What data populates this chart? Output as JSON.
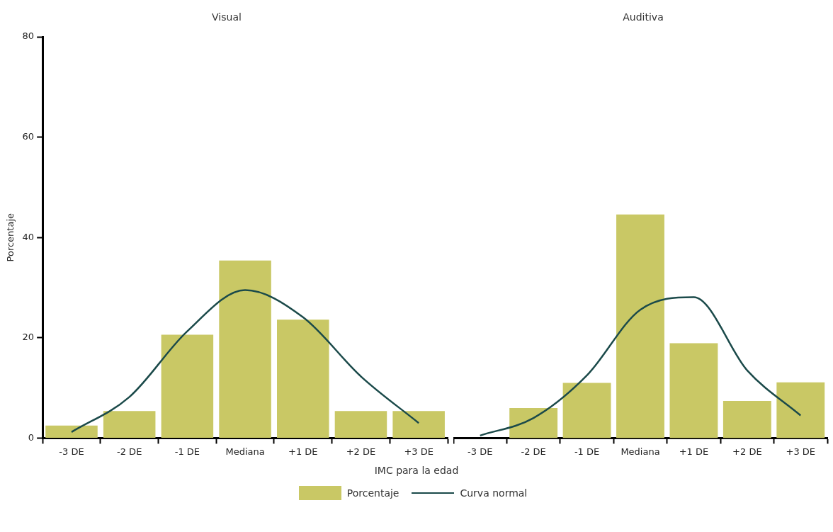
{
  "chart_data": [
    {
      "type": "bar",
      "title": "Visual",
      "xlabel": "IMC para la edad",
      "ylabel": "Porcentaje",
      "categories": [
        "-3 DE",
        "-2 DE",
        "-1 DE",
        "Mediana",
        "+1 DE",
        "+2 DE",
        "+3 DE"
      ],
      "ylim": [
        0,
        80
      ],
      "yticks": [
        0,
        20,
        40,
        60,
        80
      ],
      "legend": "bottom",
      "series": [
        {
          "name": "Porcentaje",
          "color": "#c9c865",
          "values": [
            2.5,
            5.4,
            20.6,
            35.4,
            23.6,
            5.4,
            5.4
          ]
        },
        {
          "name": "Curva normal",
          "type": "line",
          "color": "#1b4a4a",
          "values": [
            1.2,
            8.2,
            21.3,
            29.5,
            24.1,
            12.3,
            3.0
          ]
        }
      ]
    },
    {
      "type": "bar",
      "title": "Auditiva",
      "categories": [
        "-3 DE",
        "-2 DE",
        "-1 DE",
        "Mediana",
        "+1 DE",
        "+2 DE",
        "+3 DE"
      ],
      "ylim": [
        0,
        80
      ],
      "yticks": [
        0,
        20,
        40,
        60,
        80
      ],
      "tick_labels": "x",
      "series": [
        {
          "color": "#c9c865",
          "values": [
            null,
            6.0,
            11.0,
            44.6,
            18.9,
            7.4,
            11.1
          ]
        },
        {
          "type": "line",
          "color": "#1b4a4a",
          "values": [
            0.5,
            4.0,
            12.5,
            25.6,
            28.1,
            13.5,
            4.5
          ]
        }
      ]
    }
  ]
}
